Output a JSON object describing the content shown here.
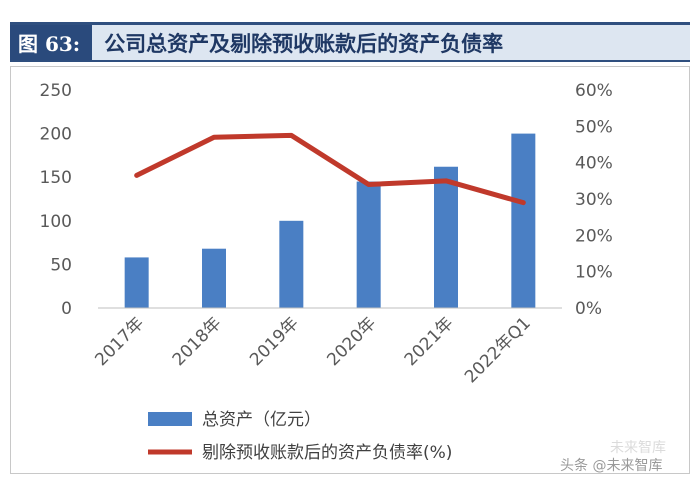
{
  "figure": {
    "tag": "图 63:",
    "title": "公司总资产及剔除预收账款后的资产负债率"
  },
  "chart_data": {
    "type": "bar",
    "categories": [
      "2017年",
      "2018年",
      "2019年",
      "2020年",
      "2021年",
      "2022年Q1"
    ],
    "series": [
      {
        "name": "总资产（亿元）",
        "type": "bar",
        "axis": "left",
        "color": "#4a7fc4",
        "values": [
          58,
          68,
          100,
          145,
          162,
          200
        ]
      },
      {
        "name": "剔除预收账款后的资产负债率(%)",
        "type": "line",
        "axis": "right",
        "color": "#c0392b",
        "values": [
          36.5,
          47,
          47.5,
          34,
          35,
          29
        ]
      }
    ],
    "y_left": {
      "lim": [
        0,
        250
      ],
      "ticks": [
        "0",
        "50",
        "100",
        "150",
        "200",
        "250"
      ]
    },
    "y_right": {
      "lim": [
        0,
        60
      ],
      "ticks": [
        "0%",
        "10%",
        "20%",
        "30%",
        "40%",
        "50%",
        "60%"
      ]
    },
    "legend_position": "bottom",
    "grid": false
  },
  "watermark": {
    "source": "头条 @未来智库",
    "faint": "未来智库"
  }
}
